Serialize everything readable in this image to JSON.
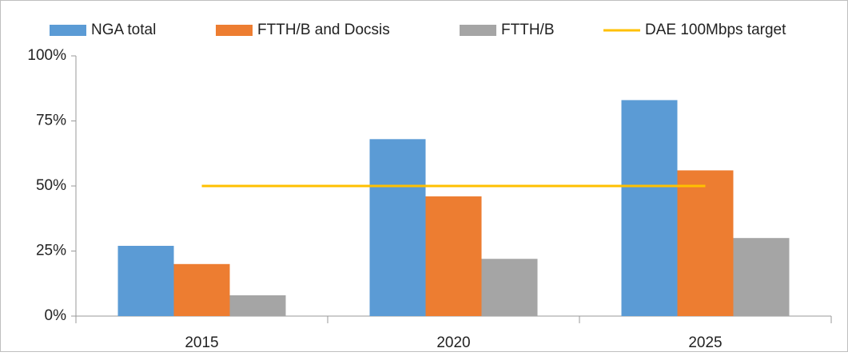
{
  "chart_data": {
    "type": "bar",
    "categories": [
      "2015",
      "2020",
      "2025"
    ],
    "series": [
      {
        "name": "NGA total",
        "color": "#5b9bd5",
        "values": [
          27,
          68,
          83
        ]
      },
      {
        "name": "FTTH/B and Docsis",
        "color": "#ed7d31",
        "values": [
          20,
          46,
          56
        ]
      },
      {
        "name": "FTTH/B",
        "color": "#a5a5a5",
        "values": [
          8,
          22,
          30
        ]
      },
      {
        "name": "DAE 100Mbps target",
        "color": "#ffc000",
        "type": "line",
        "values": [
          50,
          50,
          50
        ]
      }
    ],
    "ylim": [
      0,
      100
    ],
    "yticks": [
      {
        "value": 0,
        "label": "0%"
      },
      {
        "value": 25,
        "label": "25%"
      },
      {
        "value": 50,
        "label": "50%"
      },
      {
        "value": 75,
        "label": "75%"
      },
      {
        "value": 100,
        "label": "100%"
      }
    ],
    "grid": false,
    "legend": "top"
  }
}
